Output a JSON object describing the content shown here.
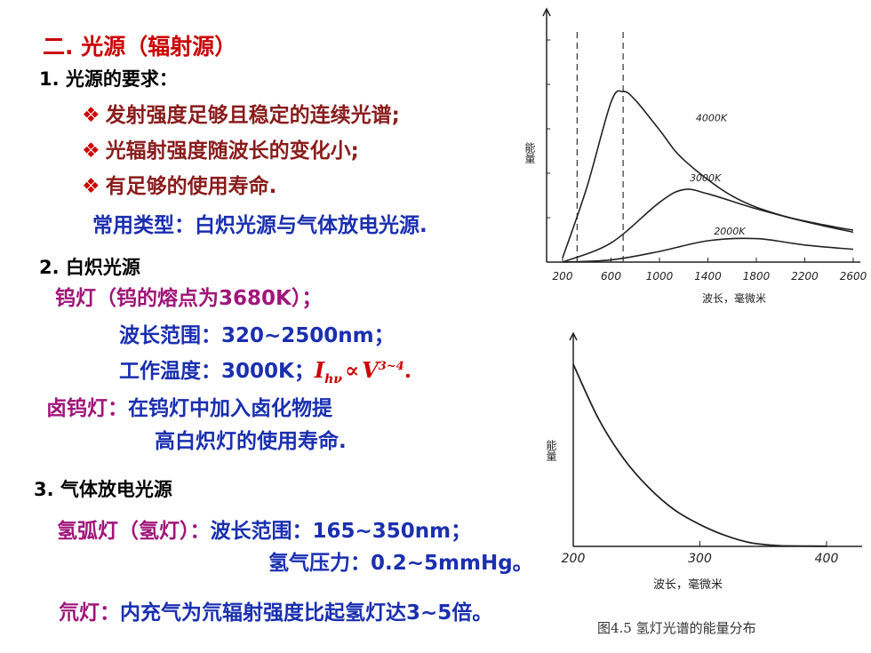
{
  "section2_title": "二. 光源（辐射源）",
  "req": {
    "heading": "1. 光源的要求：",
    "bullet": "❖",
    "items": [
      "发射强度足够且稳定的连续光谱;",
      "光辐射强度随波长的变化小;",
      "有足够的使用寿命."
    ],
    "common": "常用类型：白炽光源与气体放电光源."
  },
  "incand": {
    "heading": "2. 白炽光源",
    "tungsten": "钨灯（钨的熔点为3680K）；",
    "range": "波长范围：320~2500nm；",
    "temp_prefix": "工作温度：3000K；",
    "formula_i": "I",
    "formula_sub": "hν",
    "formula_prop": "∝",
    "formula_v": "V",
    "formula_exp": "3~4",
    "formula_end": ".",
    "halogen_label": "卤钨灯：",
    "halogen_text1": "在钨灯中加入卤化物提",
    "halogen_text2": "高白炽灯的使用寿命."
  },
  "gas": {
    "heading": "3. 气体放电光源",
    "hydrogen_label": "氢弧灯（氢灯）：",
    "hydrogen_range": "波长范围：165~350nm；",
    "hydrogen_pressure": "氢气压力：0.2~5mmHg。",
    "deuterium_label": "氘灯：",
    "deuterium_text": "内充气为氘辐射强度比起氢灯达3~5倍。"
  },
  "chart_data": [
    {
      "type": "line",
      "ylabel": "能量",
      "xlabel": "波长，毫微米",
      "x_ticks": [
        "200",
        "600",
        "1000",
        "1400",
        "1800",
        "2200",
        "2600"
      ],
      "xlim": [
        200,
        2600
      ],
      "series": [
        {
          "name": "4000K",
          "x": [
            200,
            400,
            600,
            700,
            800,
            1000,
            1200,
            1600,
            2000,
            2400,
            2600
          ],
          "y": [
            2,
            35,
            75,
            80,
            76,
            62,
            48,
            31,
            22,
            17,
            15
          ]
        },
        {
          "name": "3000K",
          "x": [
            200,
            600,
            1000,
            1200,
            1400,
            1800,
            2200,
            2600
          ],
          "y": [
            0,
            9,
            28,
            34,
            32,
            25,
            19,
            14
          ]
        },
        {
          "name": "2000K",
          "x": [
            200,
            600,
            1000,
            1400,
            1800,
            2200,
            2600
          ],
          "y": [
            0,
            1,
            5,
            10,
            11,
            8,
            6
          ]
        }
      ],
      "dashed_verticals": [
        320,
        700
      ]
    },
    {
      "type": "line",
      "ylabel": "能量",
      "xlabel": "波长，毫微米",
      "x_ticks": [
        "200",
        "300",
        "400"
      ],
      "xlim": [
        200,
        400
      ],
      "caption": "图4.5   氢灯光谱的能量分布",
      "series": [
        {
          "name": "",
          "x": [
            200,
            220,
            240,
            260,
            280,
            300,
            320,
            340,
            360,
            380,
            400
          ],
          "y": [
            100,
            70,
            48,
            32,
            20,
            12,
            6,
            2,
            0.5,
            0.2,
            0.1
          ]
        }
      ]
    }
  ]
}
